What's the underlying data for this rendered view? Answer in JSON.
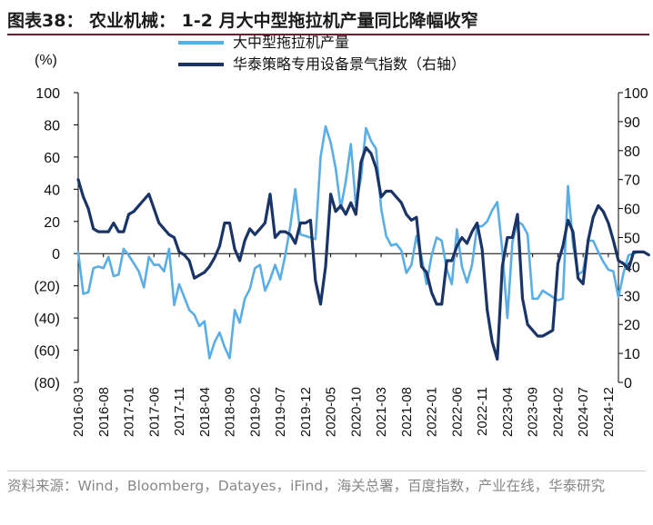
{
  "figure": {
    "title": "图表38：  农业机械：  1-2 月大中型拖拉机产量同比降幅收窄",
    "source": "资料来源：Wind，Bloomberg，Datayes，iFind，海关总署，百度指数，产业在线，华泰研究"
  },
  "colors": {
    "series_light": "#5aaee6",
    "series_dark": "#1b3468",
    "axis": "#000000",
    "title_rule": "#6d1f2a",
    "source_text": "#888888"
  },
  "chart_data": {
    "type": "line",
    "ylabel": "(%)",
    "ylim": [
      -80,
      100
    ],
    "y_ticks": [
      "100",
      "80",
      "60",
      "40",
      "20",
      "0",
      "(20)",
      "(40)",
      "(60)",
      "(80)"
    ],
    "y2lim": [
      0,
      100
    ],
    "y2_ticks": [
      "100",
      "90",
      "80",
      "70",
      "60",
      "50",
      "40",
      "30",
      "20",
      "10",
      "0"
    ],
    "x_ticks": [
      "2016-03",
      "2016-08",
      "2017-01",
      "2017-06",
      "2017-11",
      "2018-04",
      "2018-09",
      "2019-02",
      "2019-07",
      "2019-12",
      "2020-05",
      "2020-10",
      "2021-03",
      "2021-08",
      "2022-01",
      "2022-06",
      "2022-11",
      "2023-04",
      "2023-09",
      "2024-02",
      "2024-07",
      "2024-12"
    ],
    "x_start": "2016-03",
    "x_end": "2025-02",
    "legend_position": "top-center",
    "grid": false,
    "series": [
      {
        "name": "大中型拖拉机产量",
        "axis": "left",
        "color": "#5aaee6",
        "values": [
          1,
          -25,
          -24,
          -9,
          -8,
          -9,
          -2,
          -14,
          -13,
          3,
          -1,
          -6,
          -11,
          -21,
          -2,
          -7,
          -7,
          -11,
          3,
          -32,
          -19,
          -27,
          -35,
          -38,
          -45,
          -42,
          -65,
          -55,
          -49,
          -58,
          -65,
          -35,
          -43,
          -28,
          -22,
          -9,
          -7,
          -23,
          -16,
          -7,
          -16,
          -1,
          17,
          40,
          12,
          11,
          10,
          9,
          60,
          79,
          69,
          53,
          28,
          45,
          68,
          30,
          47,
          78,
          70,
          65,
          28,
          11,
          5,
          6,
          2,
          -12,
          -7,
          11,
          -2,
          -19,
          -1,
          10,
          8,
          -10,
          -19,
          15,
          -8,
          -18,
          -7,
          17,
          17,
          20,
          27,
          32,
          2,
          -40,
          7,
          20,
          18,
          12,
          -28,
          -28,
          -23,
          -25,
          -27,
          -29,
          -28,
          42,
          6,
          -13,
          -11,
          8,
          8,
          1,
          -5,
          -10,
          -11,
          -27,
          -12,
          -1,
          0,
          1
        ]
      },
      {
        "name": "华泰策略专用设备景气指数（右轴）",
        "axis": "right",
        "color": "#1b3468",
        "values": [
          70,
          64,
          60,
          53,
          52,
          52,
          52,
          55,
          52,
          52,
          58,
          59,
          61,
          63,
          65,
          60,
          55,
          53,
          51,
          50,
          45,
          44,
          42,
          36,
          37,
          38,
          40,
          43,
          47,
          55,
          55,
          46,
          42,
          49,
          53,
          51,
          53,
          55,
          65,
          50,
          52,
          52,
          51,
          48,
          55,
          55,
          56,
          35,
          27,
          40,
          65,
          59,
          61,
          58,
          62,
          58,
          76,
          81,
          79,
          74,
          64,
          66,
          66,
          64,
          62,
          58,
          56,
          57,
          40,
          38,
          31,
          27,
          27,
          42,
          42,
          47,
          50,
          48,
          52,
          55,
          46,
          25,
          14,
          8,
          40,
          50,
          50,
          58,
          29,
          20,
          18,
          16,
          16,
          17,
          18,
          41,
          47,
          56,
          52,
          36,
          34,
          49,
          57,
          61,
          59,
          55,
          49,
          42,
          41,
          39,
          45,
          45,
          45,
          44
        ]
      }
    ]
  }
}
